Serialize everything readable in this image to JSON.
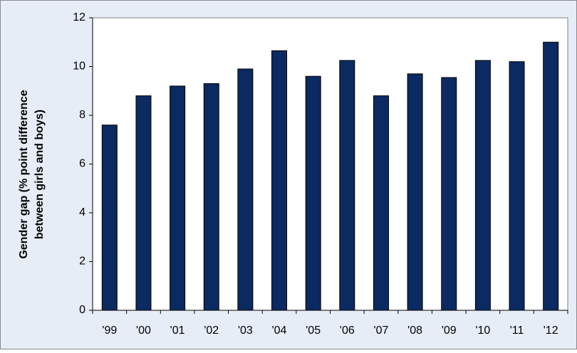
{
  "chart_data": {
    "type": "bar",
    "ylabel": [
      "Gender gap (% point difference",
      "between girls and  boys)"
    ],
    "categories": [
      "'99",
      "'00",
      "'01",
      "'02",
      "'03",
      "'04",
      "'05",
      "'06",
      "'07",
      "'08",
      "'09",
      "'10",
      "'11",
      "'12"
    ],
    "values": [
      7.6,
      8.8,
      9.2,
      9.3,
      9.9,
      10.65,
      9.6,
      10.25,
      8.8,
      9.7,
      9.55,
      10.25,
      10.2,
      11.0
    ],
    "color": "#0c2a62",
    "ylim": [
      0,
      12
    ],
    "yticks": [
      0,
      2,
      4,
      6,
      8,
      10,
      12
    ],
    "grid": false
  }
}
